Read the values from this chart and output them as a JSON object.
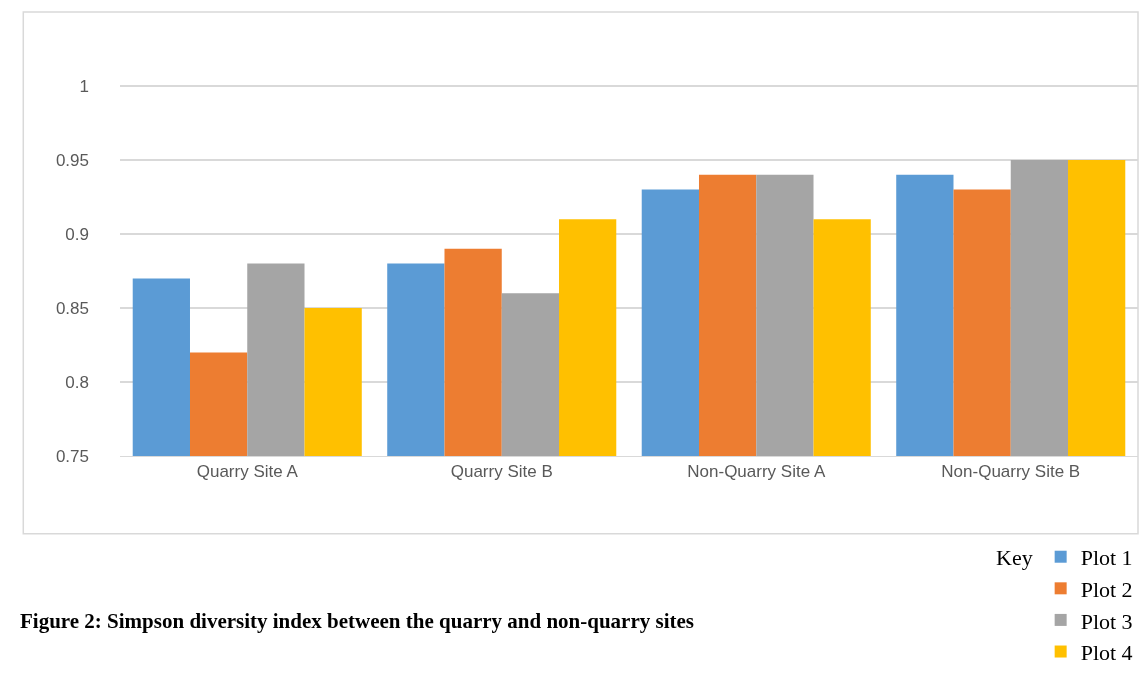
{
  "chart_data": {
    "type": "bar",
    "categories": [
      "Quarry Site A",
      "Quarry Site B",
      "Non-Quarry Site A",
      "Non-Quarry Site B"
    ],
    "series": [
      {
        "name": "Plot 1",
        "color": "#5b9bd5",
        "values": [
          0.87,
          0.88,
          0.93,
          0.94
        ]
      },
      {
        "name": "Plot 2",
        "color": "#ed7d31",
        "values": [
          0.82,
          0.89,
          0.94,
          0.93
        ]
      },
      {
        "name": "Plot 3",
        "color": "#a5a5a5",
        "values": [
          0.88,
          0.86,
          0.94,
          0.95
        ]
      },
      {
        "name": "Plot 4",
        "color": "#ffc000",
        "values": [
          0.85,
          0.91,
          0.91,
          0.95
        ]
      }
    ],
    "ylim": [
      0.75,
      1.05
    ],
    "yticks": [
      0.75,
      0.8,
      0.85,
      0.9,
      0.95,
      1
    ],
    "grid": "y",
    "legend": "bottom right",
    "legend_title": "Key",
    "annotations": [
      "Figure 2: Simpson diversity index between the quarry and non-quarry sites"
    ]
  }
}
